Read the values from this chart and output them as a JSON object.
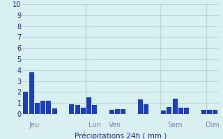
{
  "title": "",
  "xlabel": "Précipitations 24h ( mm )",
  "ylabel": "",
  "ylim": [
    0,
    10
  ],
  "bar_color": "#1a3ec8",
  "background_color": "#d8f0f0",
  "grid_color": "#b8d4d4",
  "axis_label_color": "#2020c0",
  "tick_label_color": "#2020c0",
  "day_label_color": "#8080bb",
  "values": [
    2.0,
    3.8,
    1.0,
    1.2,
    1.2,
    0.5,
    0.0,
    0.0,
    0.9,
    0.8,
    0.6,
    1.5,
    0.85,
    0.0,
    0.0,
    0.4,
    0.45,
    0.45,
    0.0,
    0.0,
    1.3,
    0.9,
    0.0,
    0.0,
    0.3,
    0.65,
    1.4,
    0.6,
    0.55,
    0.0,
    0.0,
    0.35,
    0.4,
    0.35
  ],
  "day_labels": [
    {
      "label": "Jeu",
      "x": 1.5
    },
    {
      "label": "Lun",
      "x": 12.0
    },
    {
      "label": "Ven",
      "x": 15.5
    },
    {
      "label": "Sam",
      "x": 26.0
    },
    {
      "label": "Dim",
      "x": 32.5
    }
  ],
  "day_separators": [
    11,
    24,
    32
  ],
  "yticks": [
    0,
    1,
    2,
    3,
    4,
    5,
    6,
    7,
    8,
    9,
    10
  ]
}
